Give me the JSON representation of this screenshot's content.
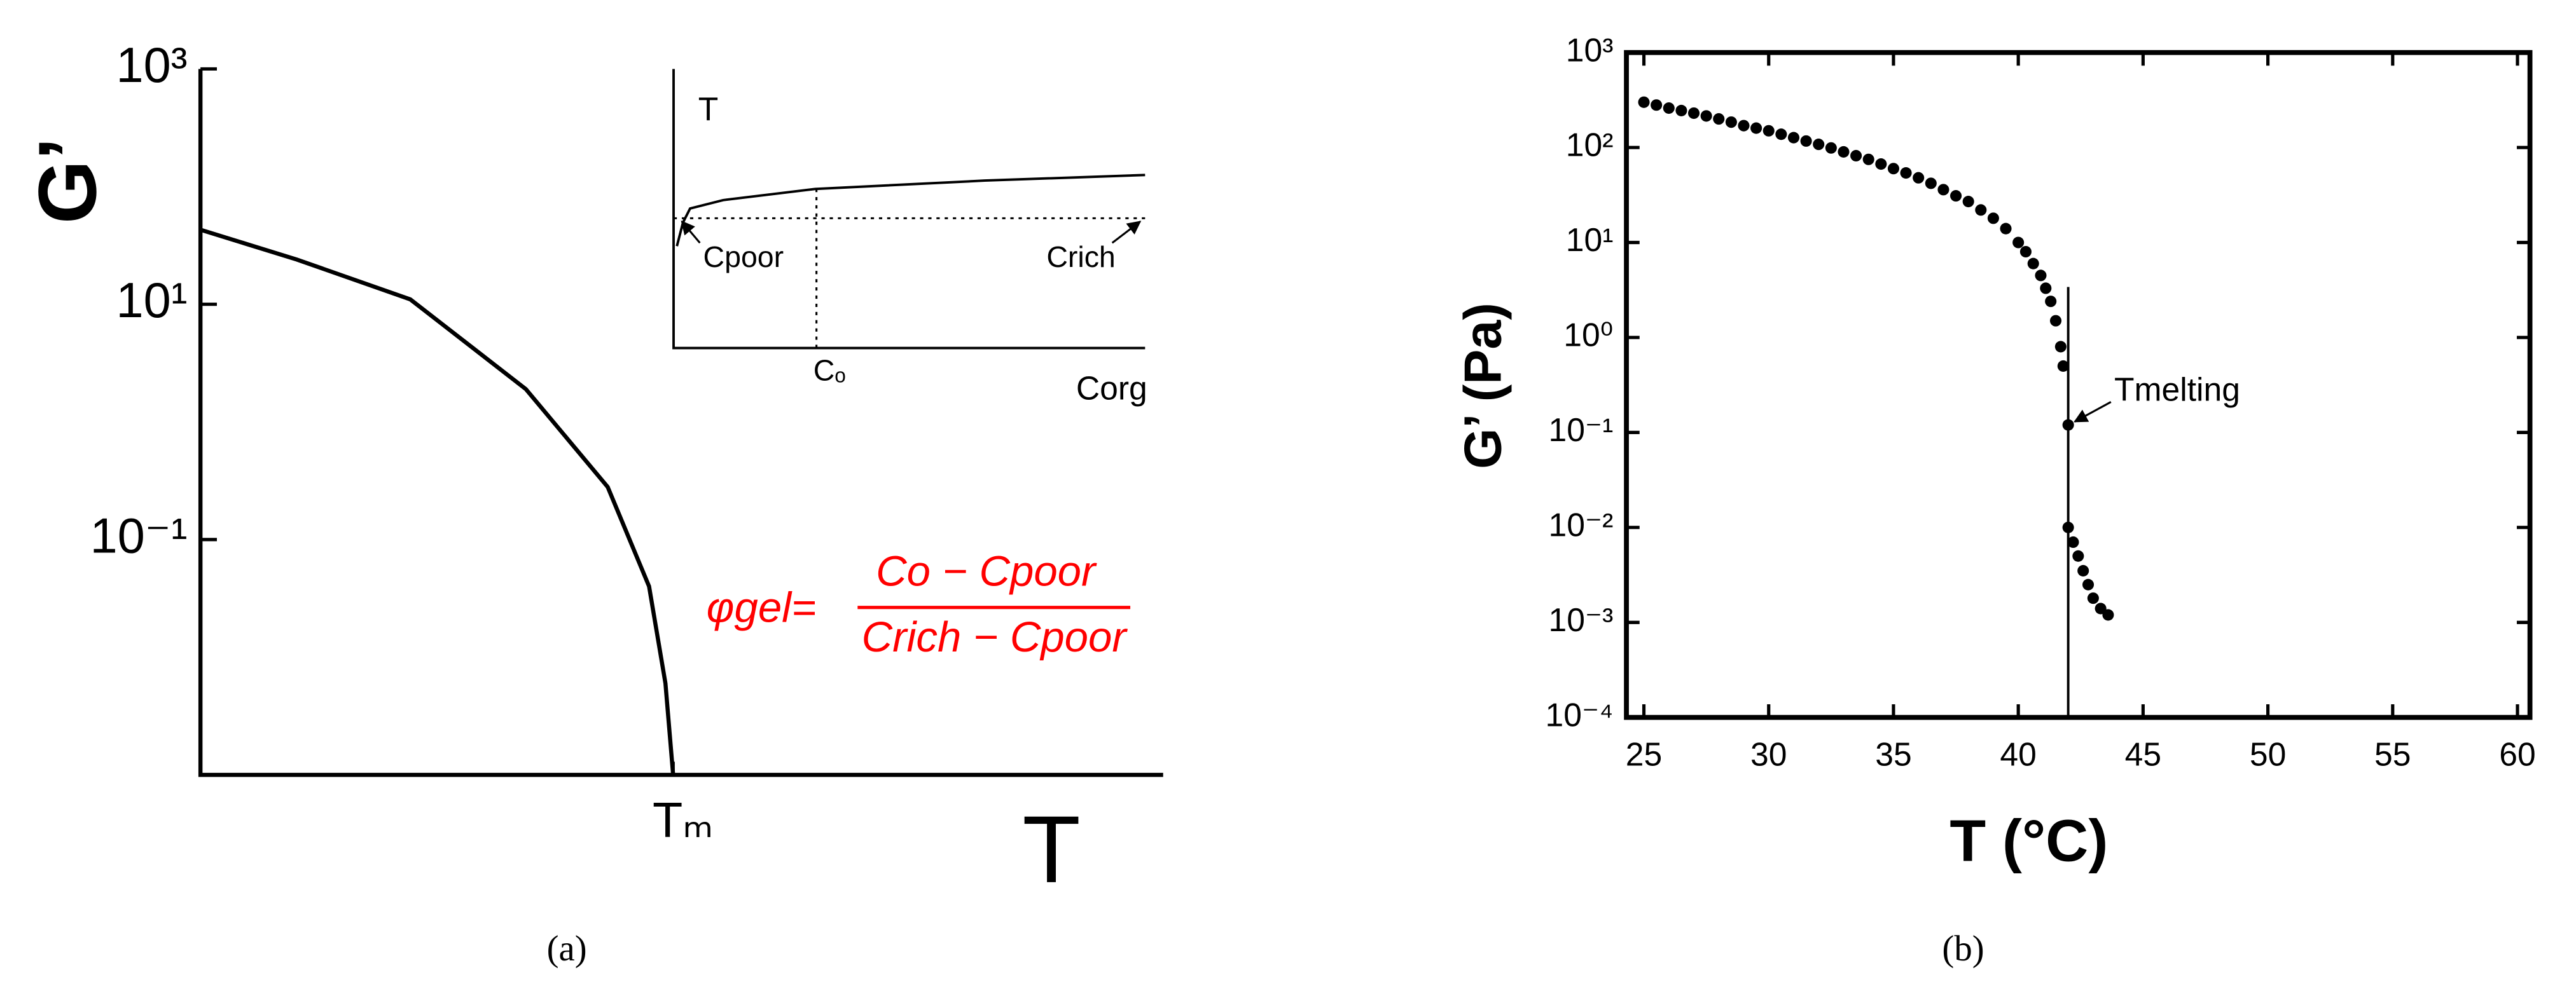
{
  "chart_data": [
    {
      "type": "line",
      "caption": "(a)",
      "xlabel": "T",
      "ylabel": "G’",
      "log_y": true,
      "xlim": [
        0,
        10
      ],
      "ylim": [
        0.001,
        1000
      ],
      "xticks": [
        {
          "value": 4.91,
          "label": "Tₘ"
        }
      ],
      "yticks": [
        {
          "value": 0.1,
          "label": "10⁻¹"
        },
        {
          "value": 10,
          "label": "10¹"
        },
        {
          "value": 1000,
          "label": "10³"
        }
      ],
      "x": [
        0,
        1,
        2.18,
        3.38,
        4.23,
        4.66,
        4.83,
        4.91
      ],
      "series": [
        {
          "color": "#000000",
          "values": [
            43,
            24,
            11,
            1.9,
            0.28,
            0.04,
            0.006,
            0.001
          ]
        }
      ],
      "formula": {
        "lhs": "φgel=",
        "numerator": "Co − Cpoor",
        "denominator": "Crich − Cpoor",
        "color": "#ff0000"
      },
      "inset": {
        "type": "line",
        "xlabel": "Corg",
        "ylabel": "T",
        "xlim": [
          0,
          1
        ],
        "ylim": [
          0,
          1
        ],
        "xticks": [
          {
            "value": 0.303,
            "label": "Cₒ"
          }
        ],
        "x": [
          0.007,
          0.02,
          0.035,
          0.105,
          0.3,
          0.66,
          1
        ],
        "series": [
          {
            "color": "#000000",
            "values": [
              0.365,
              0.45,
              0.5,
              0.53,
              0.57,
              0.6,
              0.62
            ]
          }
        ],
        "hline": 0.465,
        "vline": 0.303,
        "annotations": [
          {
            "text": "Cpoor",
            "x": 0.007,
            "y": 0.465
          },
          {
            "text": "Crich",
            "x": 1,
            "y": 0.465
          }
        ]
      }
    },
    {
      "type": "scatter",
      "caption": "(b)",
      "xlabel": "T (°C)",
      "ylabel": "G’ (Pa)",
      "log_y": true,
      "xlim": [
        24.3,
        60.5
      ],
      "ylim": [
        0.0001,
        1000
      ],
      "xticks": [
        25,
        30,
        35,
        40,
        45,
        50,
        55,
        60
      ],
      "yticks": [
        {
          "value": 1000,
          "label": "10³"
        },
        {
          "value": 100,
          "label": "10²"
        },
        {
          "value": 10,
          "label": "10¹"
        },
        {
          "value": 1,
          "label": "10⁰"
        },
        {
          "value": 0.1,
          "label": "10⁻¹"
        },
        {
          "value": 0.01,
          "label": "10⁻²"
        },
        {
          "value": 0.001,
          "label": "10⁻³"
        },
        {
          "value": 0.0001,
          "label": "10⁻⁴"
        }
      ],
      "x": [
        25,
        25.5,
        26,
        26.5,
        27,
        27.5,
        28,
        28.5,
        29,
        29.5,
        30,
        30.5,
        31,
        31.5,
        32,
        32.5,
        33,
        33.5,
        34,
        34.5,
        35,
        35.5,
        36,
        36.5,
        37,
        37.5,
        38,
        38.5,
        39,
        39.5,
        40,
        40.3,
        40.6,
        40.9,
        41.1,
        41.3,
        41.5,
        41.7,
        41.8,
        42,
        42,
        42.2,
        42.4,
        42.6,
        42.8,
        43,
        43.3,
        43.6
      ],
      "series": [
        {
          "color": "#000000",
          "values": [
            300,
            280,
            260,
            245,
            230,
            215,
            200,
            185,
            170,
            160,
            150,
            138,
            127,
            117,
            108,
            99,
            90,
            82,
            75,
            67,
            60,
            54,
            48,
            42,
            36,
            31,
            27,
            22,
            18,
            14,
            10,
            8,
            6,
            4.5,
            3.3,
            2.4,
            1.5,
            0.8,
            0.5,
            0.12,
            0.01,
            0.007,
            0.005,
            0.0035,
            0.0025,
            0.0018,
            0.0014,
            0.0012
          ]
        }
      ],
      "vline": {
        "x": 42,
        "top": 3.4
      },
      "annotation": {
        "text": "Tmelting",
        "x": 42,
        "y": 0.12
      }
    }
  ]
}
